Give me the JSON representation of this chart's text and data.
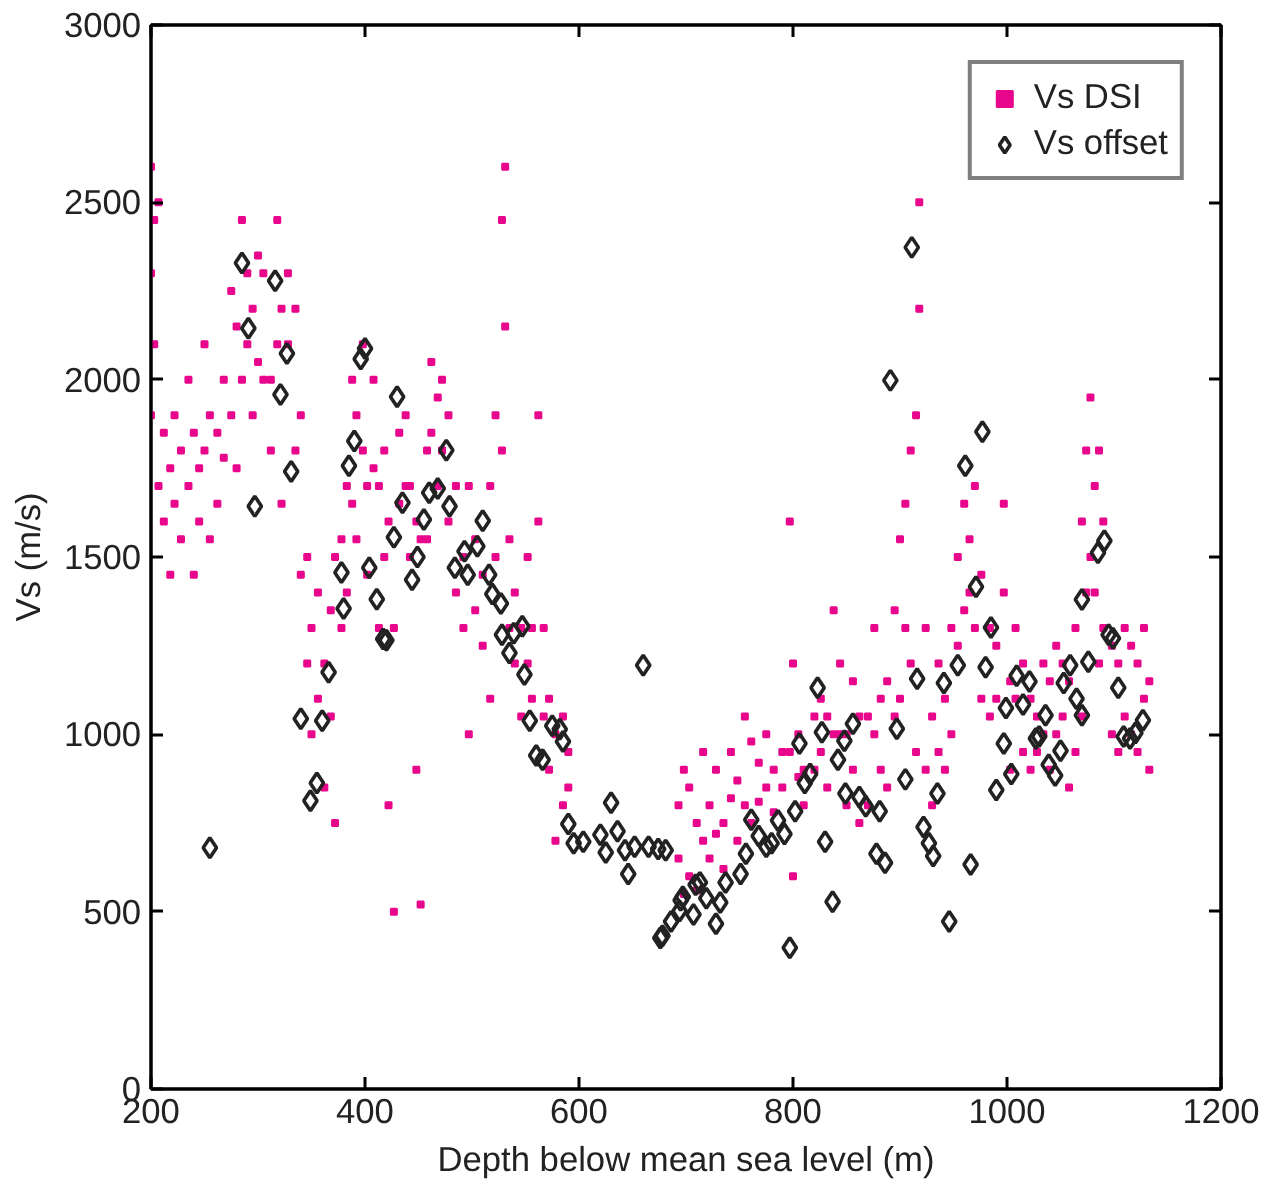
{
  "chart_data": {
    "type": "scatter",
    "xlabel": "Depth below mean sea level (m)",
    "ylabel": "Vs (m/s)",
    "xlim": [
      200,
      1200
    ],
    "xticks": [
      200,
      400,
      600,
      800,
      1000,
      1200
    ],
    "ylim": [
      0,
      3000
    ],
    "yticks": [
      0,
      500,
      1000,
      1500,
      2000,
      2500,
      3000
    ],
    "grid": false,
    "legend": "top right",
    "series": [
      {
        "name": "Vs DSI",
        "color": "#e8068c",
        "marker": "square",
        "x": [
          200,
          200,
          200,
          203,
          203,
          207,
          207,
          212,
          212,
          218,
          218,
          222,
          222,
          228,
          228,
          235,
          235,
          240,
          240,
          245,
          245,
          250,
          250,
          255,
          255,
          262,
          262,
          268,
          268,
          275,
          275,
          280,
          280,
          285,
          285,
          290,
          290,
          295,
          295,
          300,
          300,
          305,
          305,
          312,
          312,
          318,
          318,
          322,
          322,
          328,
          328,
          335,
          335,
          340,
          340,
          346,
          346,
          350,
          350,
          356,
          356,
          362,
          362,
          368,
          368,
          372,
          372,
          378,
          378,
          383,
          383,
          388,
          388,
          392,
          392,
          398,
          398,
          402,
          402,
          408,
          408,
          413,
          413,
          418,
          418,
          422,
          422,
          427,
          427,
          432,
          432,
          438,
          438,
          442,
          442,
          448,
          448,
          452,
          452,
          458,
          458,
          462,
          462,
          468,
          468,
          472,
          472,
          478,
          478,
          485,
          485,
          492,
          492,
          497,
          497,
          503,
          503,
          510,
          510,
          517,
          517,
          522,
          522,
          528,
          528,
          531,
          531,
          535,
          535,
          540,
          540,
          546,
          546,
          552,
          552,
          556,
          556,
          562,
          562,
          567,
          567,
          572,
          572,
          578,
          578,
          585,
          585,
          590,
          590,
          693,
          693,
          698,
          698,
          703,
          703,
          710,
          710,
          716,
          716,
          722,
          722,
          728,
          728,
          735,
          735,
          742,
          742,
          748,
          748,
          755,
          755,
          761,
          761,
          768,
          768,
          775,
          775,
          782,
          782,
          790,
          790,
          797,
          797,
          800,
          800,
          805,
          805,
          810,
          810,
          820,
          820,
          826,
          826,
          832,
          832,
          838,
          838,
          844,
          844,
          850,
          850,
          856,
          856,
          862,
          862,
          870,
          870,
          876,
          876,
          882,
          882,
          888,
          888,
          895,
          895,
          900,
          900,
          905,
          905,
          910,
          910,
          915,
          915,
          918,
          918,
          924,
          924,
          930,
          930,
          936,
          936,
          942,
          942,
          948,
          948,
          954,
          954,
          960,
          960,
          965,
          965,
          970,
          970,
          976,
          976,
          984,
          984,
          990,
          990,
          997,
          997,
          1003,
          1003,
          1008,
          1008,
          1015,
          1015,
          1022,
          1022,
          1028,
          1028,
          1034,
          1034,
          1040,
          1040,
          1046,
          1046,
          1052,
          1052,
          1058,
          1058,
          1064,
          1064,
          1070,
          1070,
          1074,
          1074,
          1078,
          1078,
          1082,
          1082,
          1086,
          1086,
          1090,
          1090,
          1098,
          1098,
          1104,
          1104,
          1110,
          1110,
          1116,
          1116,
          1122,
          1122,
          1128,
          1128,
          1133,
          1133
        ],
        "values": [
          2600,
          2300,
          1900,
          2450,
          2100,
          2500,
          1700,
          1850,
          1600,
          1750,
          1450,
          1900,
          1650,
          1800,
          1550,
          2000,
          1700,
          1850,
          1450,
          1750,
          1600,
          2100,
          1800,
          1900,
          1550,
          1850,
          1650,
          2000,
          1780,
          2250,
          1900,
          2150,
          1750,
          2450,
          2000,
          2300,
          2100,
          2200,
          1900,
          2350,
          2050,
          2300,
          2000,
          2000,
          1800,
          2450,
          2100,
          2200,
          1650,
          2300,
          2100,
          2200,
          1800,
          1900,
          1450,
          1500,
          1200,
          1300,
          1000,
          1400,
          1100,
          1200,
          850,
          1350,
          1050,
          1500,
          750,
          1550,
          1300,
          1700,
          1400,
          2000,
          1650,
          1900,
          1550,
          2100,
          1800,
          1700,
          1450,
          2000,
          1750,
          1700,
          1300,
          1800,
          1500,
          1600,
          800,
          1300,
          500,
          1850,
          1650,
          1900,
          1700,
          1700,
          1500,
          1600,
          900,
          1550,
          520,
          1800,
          1550,
          2050,
          1850,
          1950,
          1700,
          2000,
          1800,
          1900,
          1600,
          1700,
          1400,
          1500,
          1300,
          1700,
          1000,
          1550,
          1350,
          1450,
          1250,
          1700,
          1100,
          1900,
          1500,
          2450,
          1800,
          2600,
          2150,
          1550,
          1300,
          1400,
          1200,
          1300,
          1050,
          1500,
          1200,
          1300,
          1100,
          1900,
          1600,
          1300,
          1050,
          1100,
          900,
          1000,
          700,
          1050,
          800,
          950,
          850,
          800,
          650,
          900,
          550,
          850,
          600,
          750,
          560,
          950,
          700,
          800,
          650,
          900,
          720,
          750,
          620,
          950,
          820,
          870,
          700,
          1050,
          800,
          980,
          750,
          920,
          810,
          1000,
          850,
          900,
          780,
          950,
          850,
          1600,
          950,
          1200,
          600,
          1000,
          880,
          900,
          800,
          1050,
          900,
          1100,
          950,
          1050,
          850,
          1350,
          1000,
          1200,
          1000,
          1000,
          800,
          1150,
          900,
          1050,
          750,
          1050,
          800,
          1300,
          1000,
          1100,
          900,
          1150,
          850,
          1350,
          1050,
          1550,
          1100,
          1650,
          1300,
          1800,
          1200,
          1900,
          950,
          2500,
          2200,
          1300,
          900,
          1050,
          800,
          1200,
          950,
          1100,
          900,
          1300,
          1000,
          1500,
          1250,
          1650,
          1350,
          1550,
          1400,
          1700,
          1300,
          1450,
          1100,
          1300,
          1050,
          1250,
          1100,
          1650,
          1400,
          1150,
          900,
          1300,
          1100,
          1200,
          950,
          1100,
          900,
          1050,
          950,
          1200,
          1000,
          1150,
          900,
          1250,
          1000,
          1200,
          1050,
          1150,
          850,
          1300,
          950,
          1600,
          1050,
          1800,
          1400,
          1950,
          1500,
          1700,
          1400,
          1800,
          1200,
          1600,
          1300,
          1250,
          1000,
          1200,
          950,
          1300,
          1050,
          1250,
          1000,
          1200,
          950,
          1300,
          1100,
          1150,
          900
        ]
      },
      {
        "name": "Vs offset",
        "color": "#222222",
        "marker": "diamond",
        "x": [
          285,
          291,
          316,
          327,
          321,
          331,
          297,
          255,
          340,
          360,
          355,
          349,
          366,
          378,
          380,
          385,
          390,
          396,
          400,
          404,
          411,
          417,
          420,
          427,
          430,
          435,
          444,
          449,
          455,
          460,
          468,
          476,
          479,
          484,
          493,
          496,
          505,
          510,
          516,
          519,
          527,
          528,
          535,
          539,
          547,
          549,
          554,
          560,
          566,
          575,
          585,
          582,
          590,
          595,
          604,
          620,
          625,
          630,
          636,
          646,
          643,
          652,
          660,
          665,
          674,
          681,
          676,
          686,
          695,
          709,
          678,
          694,
          697,
          707,
          713,
          719,
          728,
          732,
          737,
          751,
          756,
          761,
          768,
          775,
          780,
          786,
          792,
          797,
          802,
          806,
          811,
          816,
          823,
          827,
          830,
          837,
          842,
          848,
          849,
          856,
          862,
          868,
          878,
          886,
          881,
          891,
          897,
          905,
          911,
          916,
          922,
          927,
          931,
          935,
          941,
          946,
          954,
          961,
          966,
          971,
          977,
          980,
          985,
          990,
          997,
          999,
          1004,
          1009,
          1015,
          1021,
          1027,
          1030,
          1036,
          1039,
          1045,
          1050,
          1053,
          1059,
          1065,
          1070,
          1070,
          1076,
          1085,
          1091,
          1095,
          1099,
          1104,
          1109,
          1115,
          1120,
          1127
        ],
        "values": [
          2329,
          2145,
          2279,
          2074,
          1958,
          1741,
          1643,
          680,
          1044,
          1038,
          863,
          813,
          1175,
          1456,
          1355,
          1757,
          1827,
          2058,
          2088,
          1470,
          1381,
          1269,
          1265,
          1556,
          1952,
          1653,
          1436,
          1500,
          1606,
          1681,
          1693,
          1801,
          1643,
          1470,
          1516,
          1450,
          1530,
          1602,
          1450,
          1396,
          1369,
          1281,
          1229,
          1285,
          1305,
          1169,
          1038,
          940,
          928,
          1024,
          980,
          1014,
          747,
          693,
          697,
          717,
          667,
          807,
          727,
          606,
          673,
          683,
          1195,
          683,
          677,
          673,
          426,
          472,
          532,
          576,
          432,
          502,
          542,
          492,
          582,
          538,
          466,
          526,
          582,
          606,
          663,
          759,
          713,
          683,
          693,
          757,
          719,
          398,
          783,
          974,
          863,
          888,
          1131,
          1006,
          697,
          528,
          928,
          982,
          833,
          1030,
          823,
          797,
          663,
          638,
          783,
          1998,
          1016,
          873,
          2373,
          1157,
          739,
          693,
          657,
          833,
          1145,
          472,
          1195,
          1757,
          633,
          1416,
          1853,
          1189,
          1301,
          843,
          974,
          1074,
          888,
          1165,
          1084,
          1149,
          988,
          994,
          1054,
          914,
          884,
          954,
          1145,
          1195,
          1100,
          1054,
          1380,
          1205,
          1512,
          1546,
          1281,
          1271,
          1131,
          994,
          988,
          1004,
          1040
        ]
      }
    ]
  }
}
